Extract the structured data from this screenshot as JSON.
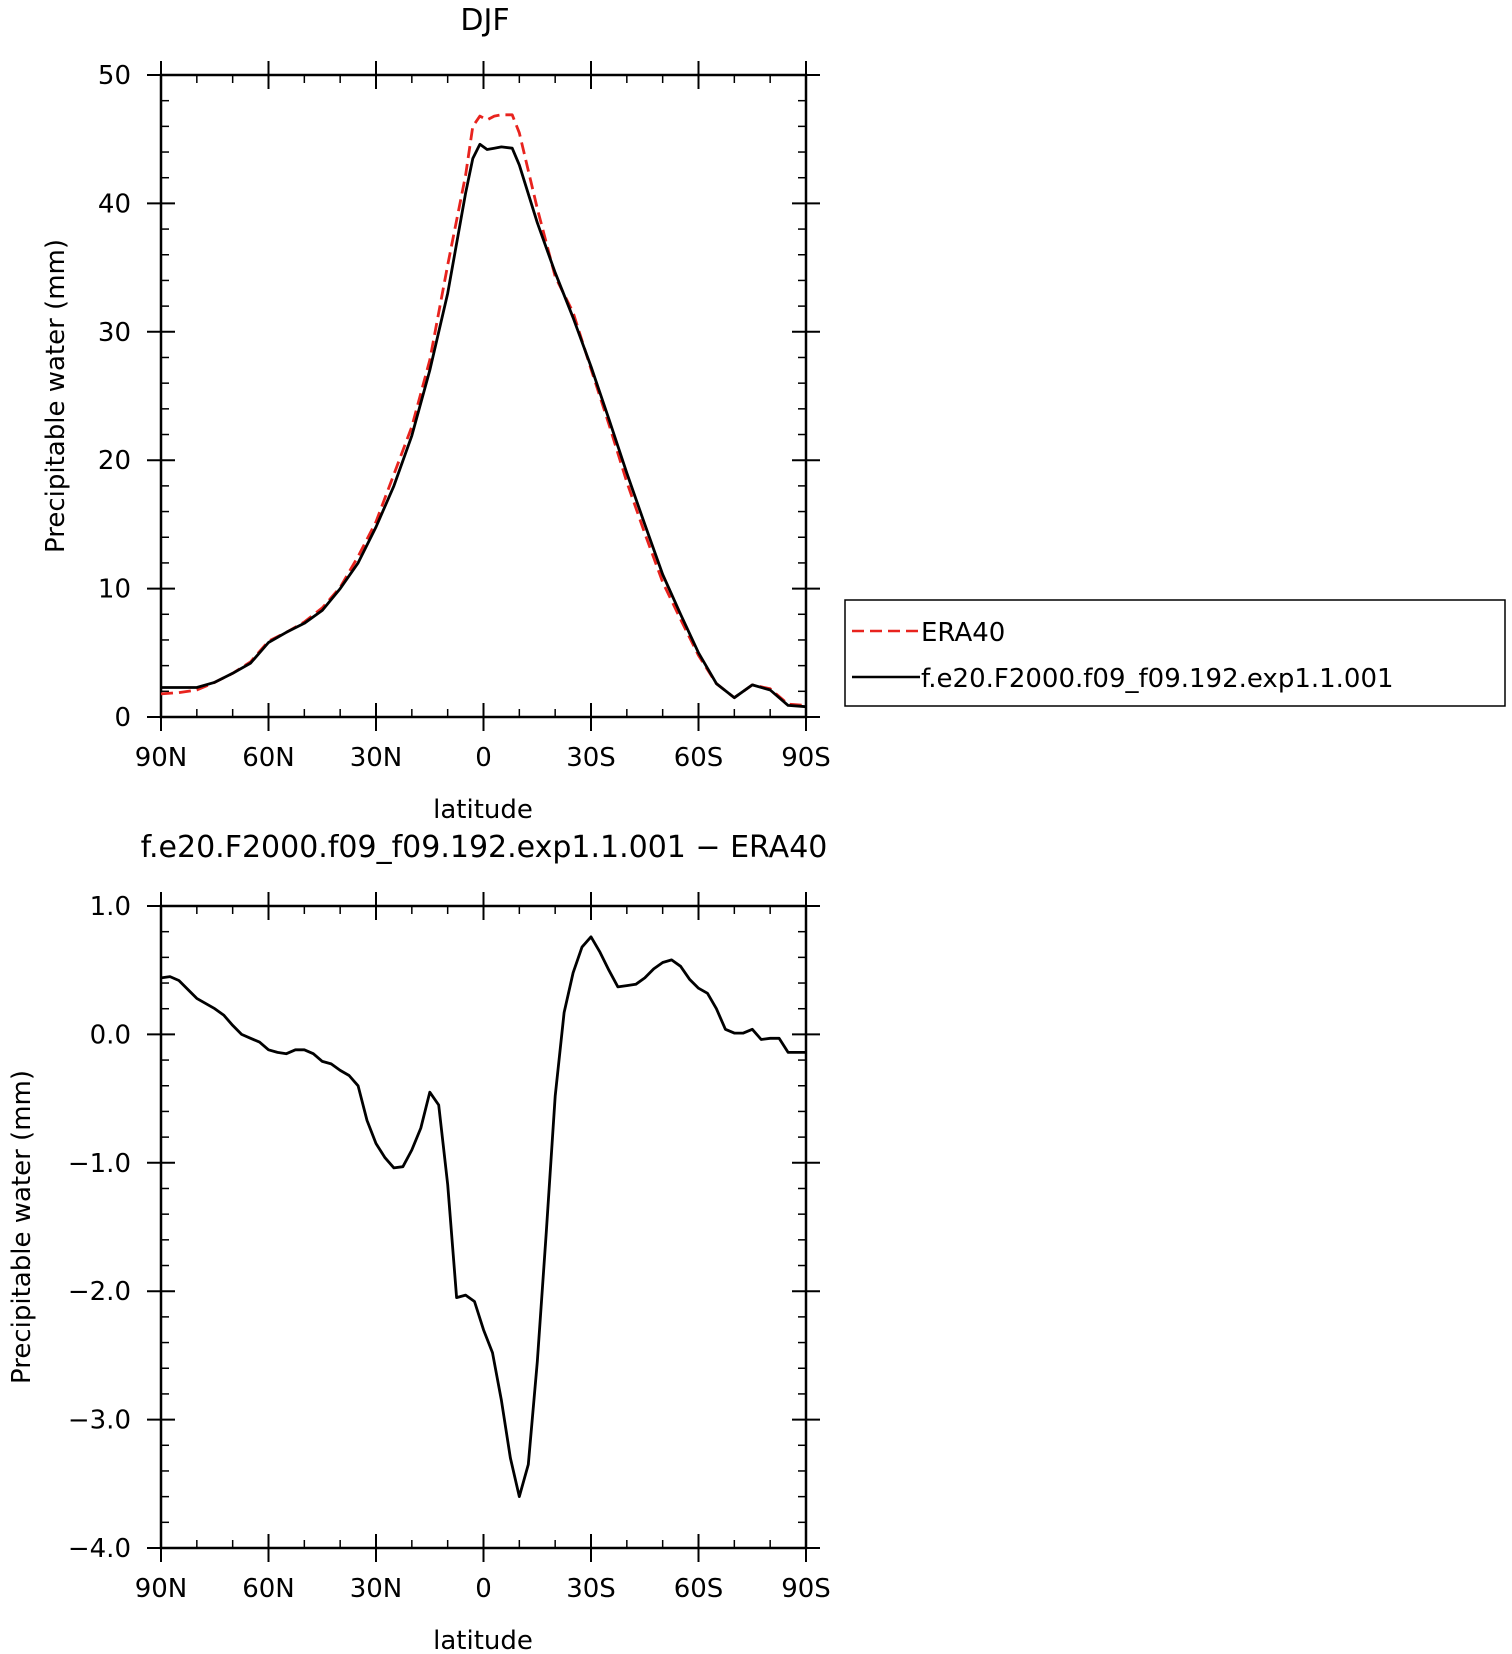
{
  "chart_data": [
    {
      "type": "line",
      "title": "DJF",
      "xlabel": "latitude",
      "ylabel": "Precipitable water (mm)",
      "xlim": [
        -90,
        90
      ],
      "ylim": [
        0,
        50
      ],
      "x_ticks": [
        -90,
        -60,
        -30,
        0,
        30,
        60,
        90
      ],
      "x_tick_labels": [
        "90N",
        "60N",
        "30N",
        "0",
        "30S",
        "60S",
        "90S"
      ],
      "y_ticks": [
        0,
        10,
        20,
        30,
        40,
        50
      ],
      "y_tick_labels": [
        "0",
        "10",
        "20",
        "30",
        "40",
        "50"
      ],
      "legend": {
        "position": "right",
        "entries": [
          "ERA40",
          "f.e20.F2000.f09_f09.192.exp1.1.001"
        ]
      },
      "series": [
        {
          "name": "ERA40",
          "style": "dashed",
          "color": "#e8231e",
          "x": [
            -90,
            -85,
            -80,
            -75,
            -70,
            -65,
            -60,
            -55,
            -50,
            -45,
            -40,
            -35,
            -30,
            -25,
            -20,
            -15,
            -10,
            -5,
            -3,
            -1,
            1,
            3,
            5,
            8,
            10,
            15,
            20,
            25,
            30,
            35,
            40,
            45,
            50,
            55,
            60,
            65,
            70,
            75,
            80,
            85,
            90
          ],
          "values": [
            1.8,
            1.9,
            2.1,
            2.7,
            3.4,
            4.3,
            5.9,
            6.6,
            7.4,
            8.5,
            10.1,
            12.5,
            15.2,
            18.9,
            22.6,
            27.8,
            35.2,
            42.2,
            46.0,
            46.8,
            46.5,
            46.8,
            46.9,
            46.9,
            45.5,
            39.6,
            34.3,
            31.5,
            27.1,
            22.8,
            18.3,
            14.3,
            10.5,
            7.6,
            4.8,
            2.6,
            1.5,
            2.5,
            2.2,
            1.0,
            0.9
          ]
        },
        {
          "name": "f.e20.F2000.f09_f09.192.exp1.1.001",
          "style": "solid",
          "color": "#000000",
          "x": [
            -90,
            -85,
            -80,
            -75,
            -70,
            -65,
            -60,
            -55,
            -50,
            -45,
            -40,
            -35,
            -30,
            -25,
            -20,
            -15,
            -10,
            -5,
            -3,
            -1,
            1,
            3,
            5,
            8,
            10,
            15,
            20,
            25,
            30,
            35,
            40,
            45,
            50,
            55,
            60,
            65,
            70,
            75,
            80,
            85,
            90
          ],
          "values": [
            2.3,
            2.3,
            2.3,
            2.7,
            3.4,
            4.2,
            5.8,
            6.6,
            7.3,
            8.3,
            10.0,
            12.0,
            14.8,
            18.0,
            21.9,
            27.0,
            33.0,
            40.8,
            43.5,
            44.6,
            44.2,
            44.3,
            44.4,
            44.3,
            43.0,
            38.5,
            34.6,
            31.1,
            27.3,
            23.2,
            19.0,
            15.0,
            11.1,
            8.0,
            5.0,
            2.6,
            1.5,
            2.5,
            2.1,
            0.9,
            0.8
          ]
        }
      ]
    },
    {
      "type": "line",
      "title": "f.e20.F2000.f09_f09.192.exp1.1.001 − ERA40",
      "xlabel": "latitude",
      "ylabel": "Precipitable water (mm)",
      "xlim": [
        -90,
        90
      ],
      "ylim": [
        -4.0,
        1.0
      ],
      "x_ticks": [
        -90,
        -60,
        -30,
        0,
        30,
        60,
        90
      ],
      "x_tick_labels": [
        "90N",
        "60N",
        "30N",
        "0",
        "30S",
        "60S",
        "90S"
      ],
      "y_ticks": [
        -4.0,
        -3.0,
        -2.0,
        -1.0,
        0.0,
        1.0
      ],
      "y_tick_labels": [
        "−4.0",
        "−3.0",
        "−2.0",
        "−1.0",
        "0.0",
        "1.0"
      ],
      "series": [
        {
          "style": "solid",
          "color": "#000000",
          "x": [
            -90,
            -87.5,
            -85,
            -82.5,
            -80,
            -77.5,
            -75,
            -72.5,
            -70,
            -67.5,
            -65,
            -62.5,
            -60,
            -57.5,
            -55,
            -52.5,
            -50,
            -47.5,
            -45,
            -42.5,
            -40,
            -37.5,
            -35,
            -32.5,
            -30,
            -27.5,
            -25,
            -22.5,
            -20,
            -17.5,
            -15,
            -12.5,
            -10,
            -7.5,
            -5,
            -2.5,
            0,
            2.5,
            5,
            7.5,
            10,
            12.5,
            15,
            17.5,
            20,
            22.5,
            25,
            27.5,
            30,
            32.5,
            35,
            37.5,
            40,
            42.5,
            45,
            47.5,
            50,
            52.5,
            55,
            57.5,
            60,
            62.5,
            65,
            67.5,
            70,
            72.5,
            75,
            77.5,
            80,
            82.5,
            85,
            87.5,
            90
          ],
          "values": [
            0.44,
            0.45,
            0.42,
            0.35,
            0.28,
            0.24,
            0.2,
            0.15,
            0.07,
            0.0,
            -0.03,
            -0.06,
            -0.12,
            -0.14,
            -0.15,
            -0.12,
            -0.12,
            -0.15,
            -0.21,
            -0.23,
            -0.28,
            -0.32,
            -0.4,
            -0.67,
            -0.85,
            -0.96,
            -1.04,
            -1.03,
            -0.9,
            -0.73,
            -0.45,
            -0.55,
            -1.17,
            -2.05,
            -2.03,
            -2.08,
            -2.3,
            -2.48,
            -2.85,
            -3.3,
            -3.6,
            -3.35,
            -2.55,
            -1.55,
            -0.48,
            0.17,
            0.48,
            0.68,
            0.76,
            0.64,
            0.5,
            0.37,
            0.38,
            0.39,
            0.44,
            0.51,
            0.56,
            0.58,
            0.53,
            0.43,
            0.36,
            0.32,
            0.2,
            0.04,
            0.01,
            0.01,
            0.04,
            -0.04,
            -0.03,
            -0.03,
            -0.14,
            -0.14,
            -0.14
          ]
        }
      ]
    }
  ]
}
